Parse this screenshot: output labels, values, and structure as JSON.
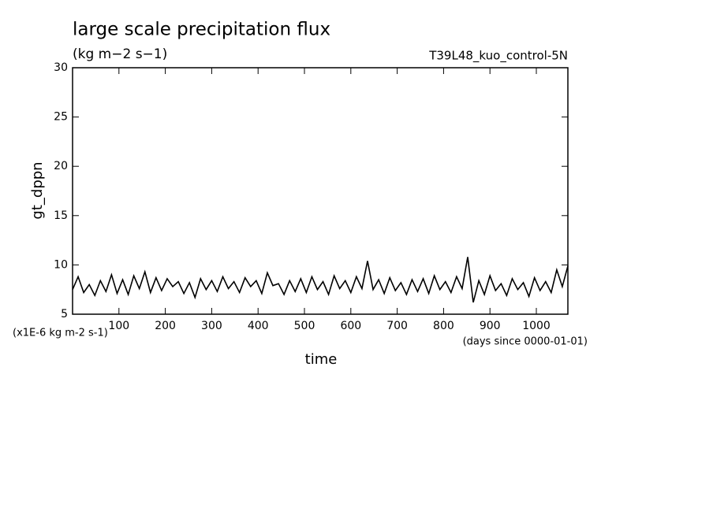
{
  "chart_data": {
    "type": "line",
    "title": "large scale precipitation flux",
    "subtitle": "(kg m−2 s−1)",
    "run_label": "T39L48_kuo_control-5N",
    "ylabel": "gt_dppn",
    "xlabel": "time",
    "y_unit_note": "(x1E-6 kg m-2 s-1)",
    "x_unit_note": "(days since 0000-01-01)",
    "xlim": [
      0,
      1068
    ],
    "ylim": [
      5,
      30
    ],
    "xticks": [
      100,
      200,
      300,
      400,
      500,
      600,
      700,
      800,
      900,
      1000
    ],
    "yticks": [
      5,
      10,
      15,
      20,
      25,
      30
    ],
    "grid": false,
    "x": [
      0,
      12,
      24,
      36,
      48,
      60,
      72,
      84,
      96,
      108,
      120,
      132,
      144,
      156,
      168,
      180,
      192,
      204,
      216,
      228,
      240,
      252,
      264,
      276,
      288,
      300,
      312,
      324,
      336,
      348,
      360,
      372,
      384,
      396,
      408,
      420,
      432,
      444,
      456,
      468,
      480,
      492,
      504,
      516,
      528,
      540,
      552,
      564,
      576,
      588,
      600,
      612,
      624,
      636,
      648,
      660,
      672,
      684,
      696,
      708,
      720,
      732,
      744,
      756,
      768,
      780,
      792,
      804,
      816,
      828,
      840,
      852,
      864,
      876,
      888,
      900,
      912,
      924,
      936,
      948,
      960,
      972,
      984,
      996,
      1008,
      1020,
      1032,
      1044,
      1056,
      1068
    ],
    "series": [
      {
        "color": "#000000",
        "values": [
          7.5,
          8.8,
          7.2,
          8.0,
          6.9,
          8.4,
          7.3,
          9.0,
          7.1,
          8.5,
          7.0,
          8.9,
          7.6,
          9.3,
          7.2,
          8.7,
          7.4,
          8.6,
          7.8,
          8.3,
          7.1,
          8.2,
          6.7,
          8.6,
          7.5,
          8.4,
          7.3,
          8.8,
          7.6,
          8.3,
          7.2,
          8.7,
          7.8,
          8.4,
          7.1,
          9.2,
          7.9,
          8.1,
          7.0,
          8.4,
          7.3,
          8.6,
          7.2,
          8.8,
          7.5,
          8.3,
          7.0,
          8.9,
          7.6,
          8.4,
          7.2,
          8.8,
          7.6,
          10.4,
          7.5,
          8.5,
          7.1,
          8.7,
          7.4,
          8.2,
          7.0,
          8.5,
          7.3,
          8.6,
          7.1,
          8.9,
          7.5,
          8.3,
          7.2,
          8.8,
          7.6,
          10.8,
          6.2,
          8.4,
          7.0,
          8.9,
          7.4,
          8.1,
          6.9,
          8.6,
          7.5,
          8.2,
          6.8,
          8.7,
          7.4,
          8.3,
          7.2,
          9.5,
          7.8,
          9.9
        ]
      }
    ]
  }
}
